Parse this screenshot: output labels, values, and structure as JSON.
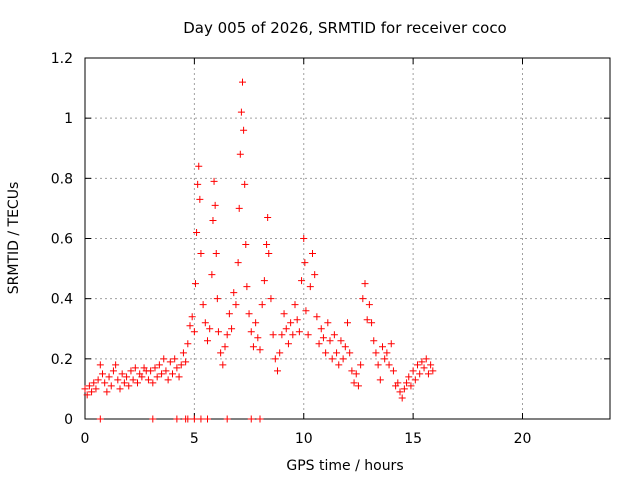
{
  "chart_data": {
    "type": "scatter",
    "title": "Day 005 of 2026, SRMTID for receiver coco",
    "xlabel": "GPS time / hours",
    "ylabel": "SRMTID / TECUs",
    "xlim": [
      0,
      24
    ],
    "ylim": [
      0,
      1.2
    ],
    "x_ticks": [
      0,
      5,
      10,
      15,
      20
    ],
    "x_tick_labels": [
      "0",
      "5",
      "10",
      "15",
      "20"
    ],
    "y_ticks": [
      0,
      0.2,
      0.4,
      0.6,
      0.8,
      1.0,
      1.2
    ],
    "y_tick_labels": [
      "0",
      "0.2",
      "0.4",
      "0.6",
      "0.8",
      "1",
      "1.2"
    ],
    "grid": true,
    "marker": "+",
    "series": [
      {
        "name": "SRMTID",
        "color": "#ff0000",
        "points": [
          [
            0.0,
            0.1
          ],
          [
            0.1,
            0.08
          ],
          [
            0.2,
            0.11
          ],
          [
            0.3,
            0.09
          ],
          [
            0.4,
            0.12
          ],
          [
            0.5,
            0.1
          ],
          [
            0.6,
            0.13
          ],
          [
            0.7,
            0.18
          ],
          [
            0.8,
            0.15
          ],
          [
            0.9,
            0.12
          ],
          [
            1.0,
            0.09
          ],
          [
            1.1,
            0.14
          ],
          [
            1.2,
            0.11
          ],
          [
            1.3,
            0.16
          ],
          [
            1.4,
            0.18
          ],
          [
            1.5,
            0.13
          ],
          [
            1.6,
            0.1
          ],
          [
            1.7,
            0.15
          ],
          [
            1.8,
            0.12
          ],
          [
            1.9,
            0.14
          ],
          [
            2.0,
            0.11
          ],
          [
            2.1,
            0.16
          ],
          [
            2.2,
            0.13
          ],
          [
            2.3,
            0.17
          ],
          [
            2.4,
            0.12
          ],
          [
            2.5,
            0.15
          ],
          [
            2.6,
            0.14
          ],
          [
            2.7,
            0.17
          ],
          [
            2.8,
            0.16
          ],
          [
            2.9,
            0.13
          ],
          [
            3.0,
            0.16
          ],
          [
            3.1,
            0.12
          ],
          [
            3.2,
            0.17
          ],
          [
            3.3,
            0.14
          ],
          [
            3.4,
            0.18
          ],
          [
            3.5,
            0.15
          ],
          [
            3.6,
            0.2
          ],
          [
            3.7,
            0.16
          ],
          [
            3.8,
            0.13
          ],
          [
            3.9,
            0.19
          ],
          [
            4.0,
            0.15
          ],
          [
            4.1,
            0.2
          ],
          [
            4.2,
            0.17
          ],
          [
            4.3,
            0.14
          ],
          [
            4.4,
            0.18
          ],
          [
            4.5,
            0.22
          ],
          [
            4.6,
            0.19
          ],
          [
            4.7,
            0.25
          ],
          [
            4.8,
            0.31
          ],
          [
            4.9,
            0.34
          ],
          [
            5.0,
            0.29
          ],
          [
            5.05,
            0.45
          ],
          [
            5.1,
            0.62
          ],
          [
            5.15,
            0.78
          ],
          [
            5.2,
            0.84
          ],
          [
            5.25,
            0.73
          ],
          [
            5.3,
            0.55
          ],
          [
            5.4,
            0.38
          ],
          [
            5.5,
            0.32
          ],
          [
            5.6,
            0.26
          ],
          [
            5.7,
            0.3
          ],
          [
            5.8,
            0.48
          ],
          [
            5.85,
            0.66
          ],
          [
            5.9,
            0.79
          ],
          [
            5.95,
            0.71
          ],
          [
            6.0,
            0.55
          ],
          [
            6.05,
            0.4
          ],
          [
            6.1,
            0.29
          ],
          [
            6.2,
            0.22
          ],
          [
            6.3,
            0.18
          ],
          [
            6.4,
            0.24
          ],
          [
            6.5,
            0.28
          ],
          [
            6.6,
            0.35
          ],
          [
            6.7,
            0.3
          ],
          [
            6.8,
            0.42
          ],
          [
            6.9,
            0.38
          ],
          [
            7.0,
            0.52
          ],
          [
            7.05,
            0.7
          ],
          [
            7.1,
            0.88
          ],
          [
            7.15,
            1.02
          ],
          [
            7.2,
            1.12
          ],
          [
            7.25,
            0.96
          ],
          [
            7.3,
            0.78
          ],
          [
            7.35,
            0.58
          ],
          [
            7.4,
            0.44
          ],
          [
            7.5,
            0.35
          ],
          [
            7.6,
            0.29
          ],
          [
            7.7,
            0.24
          ],
          [
            7.8,
            0.32
          ],
          [
            7.9,
            0.27
          ],
          [
            8.0,
            0.23
          ],
          [
            8.1,
            0.38
          ],
          [
            8.2,
            0.46
          ],
          [
            8.3,
            0.58
          ],
          [
            8.35,
            0.67
          ],
          [
            8.4,
            0.55
          ],
          [
            8.5,
            0.4
          ],
          [
            8.6,
            0.28
          ],
          [
            8.7,
            0.2
          ],
          [
            8.8,
            0.16
          ],
          [
            8.9,
            0.22
          ],
          [
            9.0,
            0.28
          ],
          [
            9.1,
            0.35
          ],
          [
            9.2,
            0.3
          ],
          [
            9.3,
            0.25
          ],
          [
            9.4,
            0.32
          ],
          [
            9.5,
            0.28
          ],
          [
            9.6,
            0.38
          ],
          [
            9.7,
            0.33
          ],
          [
            9.8,
            0.29
          ],
          [
            9.9,
            0.46
          ],
          [
            10.0,
            0.6
          ],
          [
            10.05,
            0.52
          ],
          [
            10.1,
            0.36
          ],
          [
            10.2,
            0.28
          ],
          [
            10.3,
            0.44
          ],
          [
            10.4,
            0.55
          ],
          [
            10.5,
            0.48
          ],
          [
            10.6,
            0.34
          ],
          [
            10.7,
            0.25
          ],
          [
            10.8,
            0.3
          ],
          [
            10.9,
            0.27
          ],
          [
            11.0,
            0.22
          ],
          [
            11.1,
            0.32
          ],
          [
            11.2,
            0.26
          ],
          [
            11.3,
            0.2
          ],
          [
            11.4,
            0.28
          ],
          [
            11.5,
            0.22
          ],
          [
            11.6,
            0.18
          ],
          [
            11.7,
            0.26
          ],
          [
            11.8,
            0.2
          ],
          [
            11.9,
            0.24
          ],
          [
            12.0,
            0.32
          ],
          [
            12.1,
            0.22
          ],
          [
            12.2,
            0.16
          ],
          [
            12.3,
            0.12
          ],
          [
            12.4,
            0.15
          ],
          [
            12.5,
            0.11
          ],
          [
            12.6,
            0.18
          ],
          [
            12.7,
            0.4
          ],
          [
            12.8,
            0.45
          ],
          [
            12.9,
            0.33
          ],
          [
            13.0,
            0.38
          ],
          [
            13.1,
            0.32
          ],
          [
            13.2,
            0.26
          ],
          [
            13.3,
            0.22
          ],
          [
            13.4,
            0.18
          ],
          [
            13.5,
            0.13
          ],
          [
            13.6,
            0.24
          ],
          [
            13.7,
            0.2
          ],
          [
            13.8,
            0.22
          ],
          [
            13.9,
            0.18
          ],
          [
            14.0,
            0.25
          ],
          [
            14.1,
            0.16
          ],
          [
            14.2,
            0.11
          ],
          [
            14.3,
            0.12
          ],
          [
            14.4,
            0.09
          ],
          [
            14.5,
            0.07
          ],
          [
            14.6,
            0.1
          ],
          [
            14.7,
            0.12
          ],
          [
            14.8,
            0.14
          ],
          [
            14.9,
            0.11
          ],
          [
            15.0,
            0.16
          ],
          [
            15.1,
            0.13
          ],
          [
            15.2,
            0.18
          ],
          [
            15.3,
            0.15
          ],
          [
            15.4,
            0.19
          ],
          [
            15.5,
            0.17
          ],
          [
            15.6,
            0.2
          ],
          [
            15.7,
            0.15
          ],
          [
            15.8,
            0.18
          ],
          [
            15.9,
            0.16
          ],
          [
            0.7,
            0.0
          ],
          [
            3.1,
            0.0
          ],
          [
            4.2,
            0.0
          ],
          [
            4.6,
            0.0
          ],
          [
            4.7,
            0.0
          ],
          [
            5.0,
            0.0
          ],
          [
            5.3,
            0.0
          ],
          [
            5.6,
            0.0
          ],
          [
            6.5,
            0.0
          ],
          [
            7.6,
            0.0
          ],
          [
            8.0,
            0.0
          ]
        ]
      }
    ]
  }
}
